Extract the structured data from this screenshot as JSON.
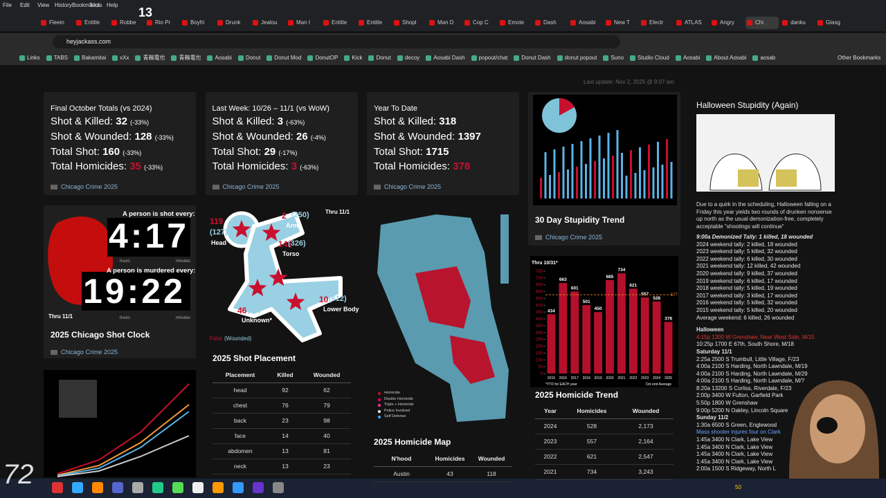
{
  "browser": {
    "menu": [
      "File",
      "Edit",
      "View",
      "History",
      "Bookmarks",
      "Tools",
      "Help"
    ],
    "overlay_count": "13",
    "tabs": [
      "Fleein",
      "Entitle",
      "Robbe",
      "Rio Pr",
      "Boyfri",
      "Drunk",
      "Jealou",
      "Man I",
      "Entitle",
      "Entitle",
      "Shopl",
      "Man D",
      "Cop C",
      "Emote",
      "Dash",
      "Aosabi",
      "New T",
      "Electr",
      "ATLAS",
      "Angry",
      "Chi",
      "danku",
      "Glasg"
    ],
    "url": "heyjackass.com",
    "bookmarks": [
      "Links",
      "TABS",
      "Bakamitai",
      "xXx",
      "青鵜電也",
      "青鵜電也",
      "Aosabi",
      "Donut",
      "Donut Mod",
      "DonutOP",
      "Kick",
      "Donut",
      "decoy",
      "Aosabi Dash",
      "popout/chat",
      "Donut Dash",
      "donut popout",
      "Suno",
      "Studio Cloud",
      "Aosabi",
      "About Aosabi",
      "aosab"
    ],
    "other_bookmarks": "Other Bookmarks"
  },
  "page": {
    "last_update": "Last update: Nov 2, 2025 @ 9:07 am",
    "stat_cards": [
      {
        "heading": "Final October Totals (vs 2024)",
        "footer": "Chicago Crime 2025",
        "lines": [
          {
            "label": "Shot & Killed:",
            "value": 32,
            "change": "(-33%)"
          },
          {
            "label": "Shot & Wounded:",
            "value": 128,
            "change": "(-33%)"
          },
          {
            "label": "Total Shot:",
            "value": 160,
            "change": "(-33%)"
          },
          {
            "label": "Total Homicides:",
            "value": 35,
            "change": "(-33%)"
          }
        ]
      },
      {
        "heading": "Last Week: 10/26 – 11/1 (vs WoW)",
        "footer": "Chicago Crime 2025",
        "lines": [
          {
            "label": "Shot & Killed:",
            "value": 3,
            "change": "(-63%)"
          },
          {
            "label": "Shot & Wounded:",
            "value": 26,
            "change": "(-4%)"
          },
          {
            "label": "Total Shot:",
            "value": 29,
            "change": "(-17%)"
          },
          {
            "label": "Total Homicides:",
            "value": 3,
            "change": "(-63%)"
          }
        ]
      },
      {
        "heading": "Year To Date",
        "footer": "Chicago Crime 2025",
        "lines": [
          {
            "label": "Shot & Killed:",
            "value": 318
          },
          {
            "label": "Shot & Wounded:",
            "value": 1397
          },
          {
            "label": "Total Shot:",
            "value": 1715
          },
          {
            "label": "Total Homicides:",
            "value": 378
          }
        ]
      }
    ],
    "stupidity": {
      "title": "30 Day Stupidity Trend",
      "footer": "Chicago Crime 2025"
    },
    "shot_clock": {
      "shot_caption": "A person is shot every:",
      "shot_time": "4:17",
      "murder_caption": "A person is murdered every:",
      "murder_time": "19:22",
      "hours": "hours",
      "minutes": "minutes",
      "thru": "Thru 11/1",
      "title": "2025 Chicago Shot Clock",
      "footer": "Chicago Crime 2025"
    },
    "placement": {
      "thru": "Thru 11/1",
      "figure": [
        {
          "fatal": "119",
          "wounded": "(127)",
          "part": "Head"
        },
        {
          "fatal": "2",
          "wounded": "(250)",
          "part": "Arms"
        },
        {
          "fatal": "142",
          "wounded": "(326)",
          "part": "Torso"
        },
        {
          "fatal": "46",
          "wounded": "(74)",
          "part": "Unknown*"
        },
        {
          "fatal": "10",
          "wounded": "(612)",
          "part": "Lower Body"
        }
      ],
      "key_fatal": "Fatal",
      "key_wounded": "(Wounded)",
      "title": "2025 Shot Placement",
      "table": {
        "headers": [
          "Placement",
          "Killed",
          "Wounded"
        ],
        "rows": [
          [
            "head",
            "92",
            "62"
          ],
          [
            "chest",
            "76",
            "79"
          ],
          [
            "back",
            "23",
            "98"
          ],
          [
            "face",
            "14",
            "40"
          ],
          [
            "abdomen",
            "13",
            "81"
          ],
          [
            "neck",
            "13",
            "23"
          ]
        ]
      }
    },
    "map": {
      "legend": [
        "Homicide",
        "Double Homicide",
        "Triple + Homicide",
        "Police Involved",
        "Self Defense"
      ],
      "title": "2025 Homicide Map",
      "table": {
        "headers": [
          "N'hood",
          "Homicides",
          "Wounded"
        ],
        "rows": [
          [
            "Austin",
            "43",
            "118"
          ]
        ]
      }
    },
    "homicide_trend": {
      "chart": {
        "type": "bar",
        "subtitle": "Thru 10/31*",
        "categories": [
          "2015",
          "2016",
          "2017",
          "2018",
          "2019",
          "2020",
          "2021",
          "2022",
          "2023",
          "2024",
          "2025"
        ],
        "values": [
          434,
          663,
          601,
          501,
          450,
          685,
          734,
          621,
          557,
          528,
          378
        ],
        "color": "#b5102b",
        "average": 577,
        "average_color": "#e07b1f",
        "ylim": [
          0,
          750
        ],
        "yticks": [
          0,
          50,
          100,
          150,
          200,
          250,
          300,
          350,
          400,
          450,
          500,
          550,
          600,
          650,
          700,
          750
        ],
        "note_left": "*YTD for EACH year",
        "note_right": "Oct end Average"
      },
      "title": "2025 Homicide Trend",
      "table": {
        "headers": [
          "Year",
          "Homicides",
          "Wounded"
        ],
        "rows": [
          [
            "2024",
            "528",
            "2,173"
          ],
          [
            "2023",
            "557",
            "2,164"
          ],
          [
            "2022",
            "621",
            "2,547"
          ],
          [
            "2021",
            "734",
            "3,243"
          ]
        ]
      }
    },
    "halloween": {
      "title": "Halloween Stupidity (Again)",
      "intro": "Due to a quirk in the scheduling, Halloween falling on a Friday this year yields two rounds of drunken nonsense up north as the usual demonization-free, completely acceptable \"shootings will continue\"",
      "tally_header": "9:00a Demonized Tally: 1 killed, 18 wounded",
      "tallies": [
        "2024 weekend tally: 2 killed, 18 wounded",
        "2023 weekend tally: 5 killed, 32 wounded",
        "2022 weekend tally: 6 killed, 30 wounded",
        "2021 weekend tally: 12 killed, 42 wounded",
        "2020 weekend tally: 9 killed, 37 wounded",
        "2019 weekend tally: 6 killed, 17 wounded",
        "2018 weekend tally: 5 killed, 19 wounded",
        "2017 weekend tally: 3 killed, 17 wounded",
        "2016 weekend tally: 5 killed, 32 wounded",
        "2015 weekend tally: 5 killed, 20 wounded",
        "Average weekend: 6 killed, 26 wounded"
      ],
      "sections": [
        {
          "heading": "Halloween",
          "items": [
            "4:15p 1300 W Grenshaw, Near West Side, M/15",
            "10:25p 1700 E 67th, South Shore, M/18"
          ]
        },
        {
          "heading": "Saturday 11/1",
          "items": [
            "2:25a 2500 S Trumbull, Little Village, F/23",
            "4:00a 2100 S Harding, North Lawndale, M/19",
            "4:00a 2100 S Harding, North Lawndale, M/29",
            "4:00a 2100 S Harding, North Lawndale, M/?",
            "8:20a 13200 S Corliss, Riverdale, F/23",
            "2:00p 3400 W Fulton, Garfield Park",
            "5:50p 1800 W Grenshaw",
            "9:00p 5200 N Oakley, Lincoln Square"
          ]
        },
        {
          "heading": "Sunday 11/2",
          "items": [
            "1:30a 6500 S Green, Englewood",
            "Mass shooter injures four on Clark",
            "1:45a 3400 N Clark, Lake View",
            "1:45a 3400 N Clark, Lake View",
            "1:45a 3400 N Clark, Lake View",
            "1:45a 3400 N Clark, Lake View",
            "2:00a 1500 S Ridgeway, North L"
          ]
        }
      ]
    }
  },
  "taskbar": {
    "logo": "72",
    "tray_count": "50"
  }
}
